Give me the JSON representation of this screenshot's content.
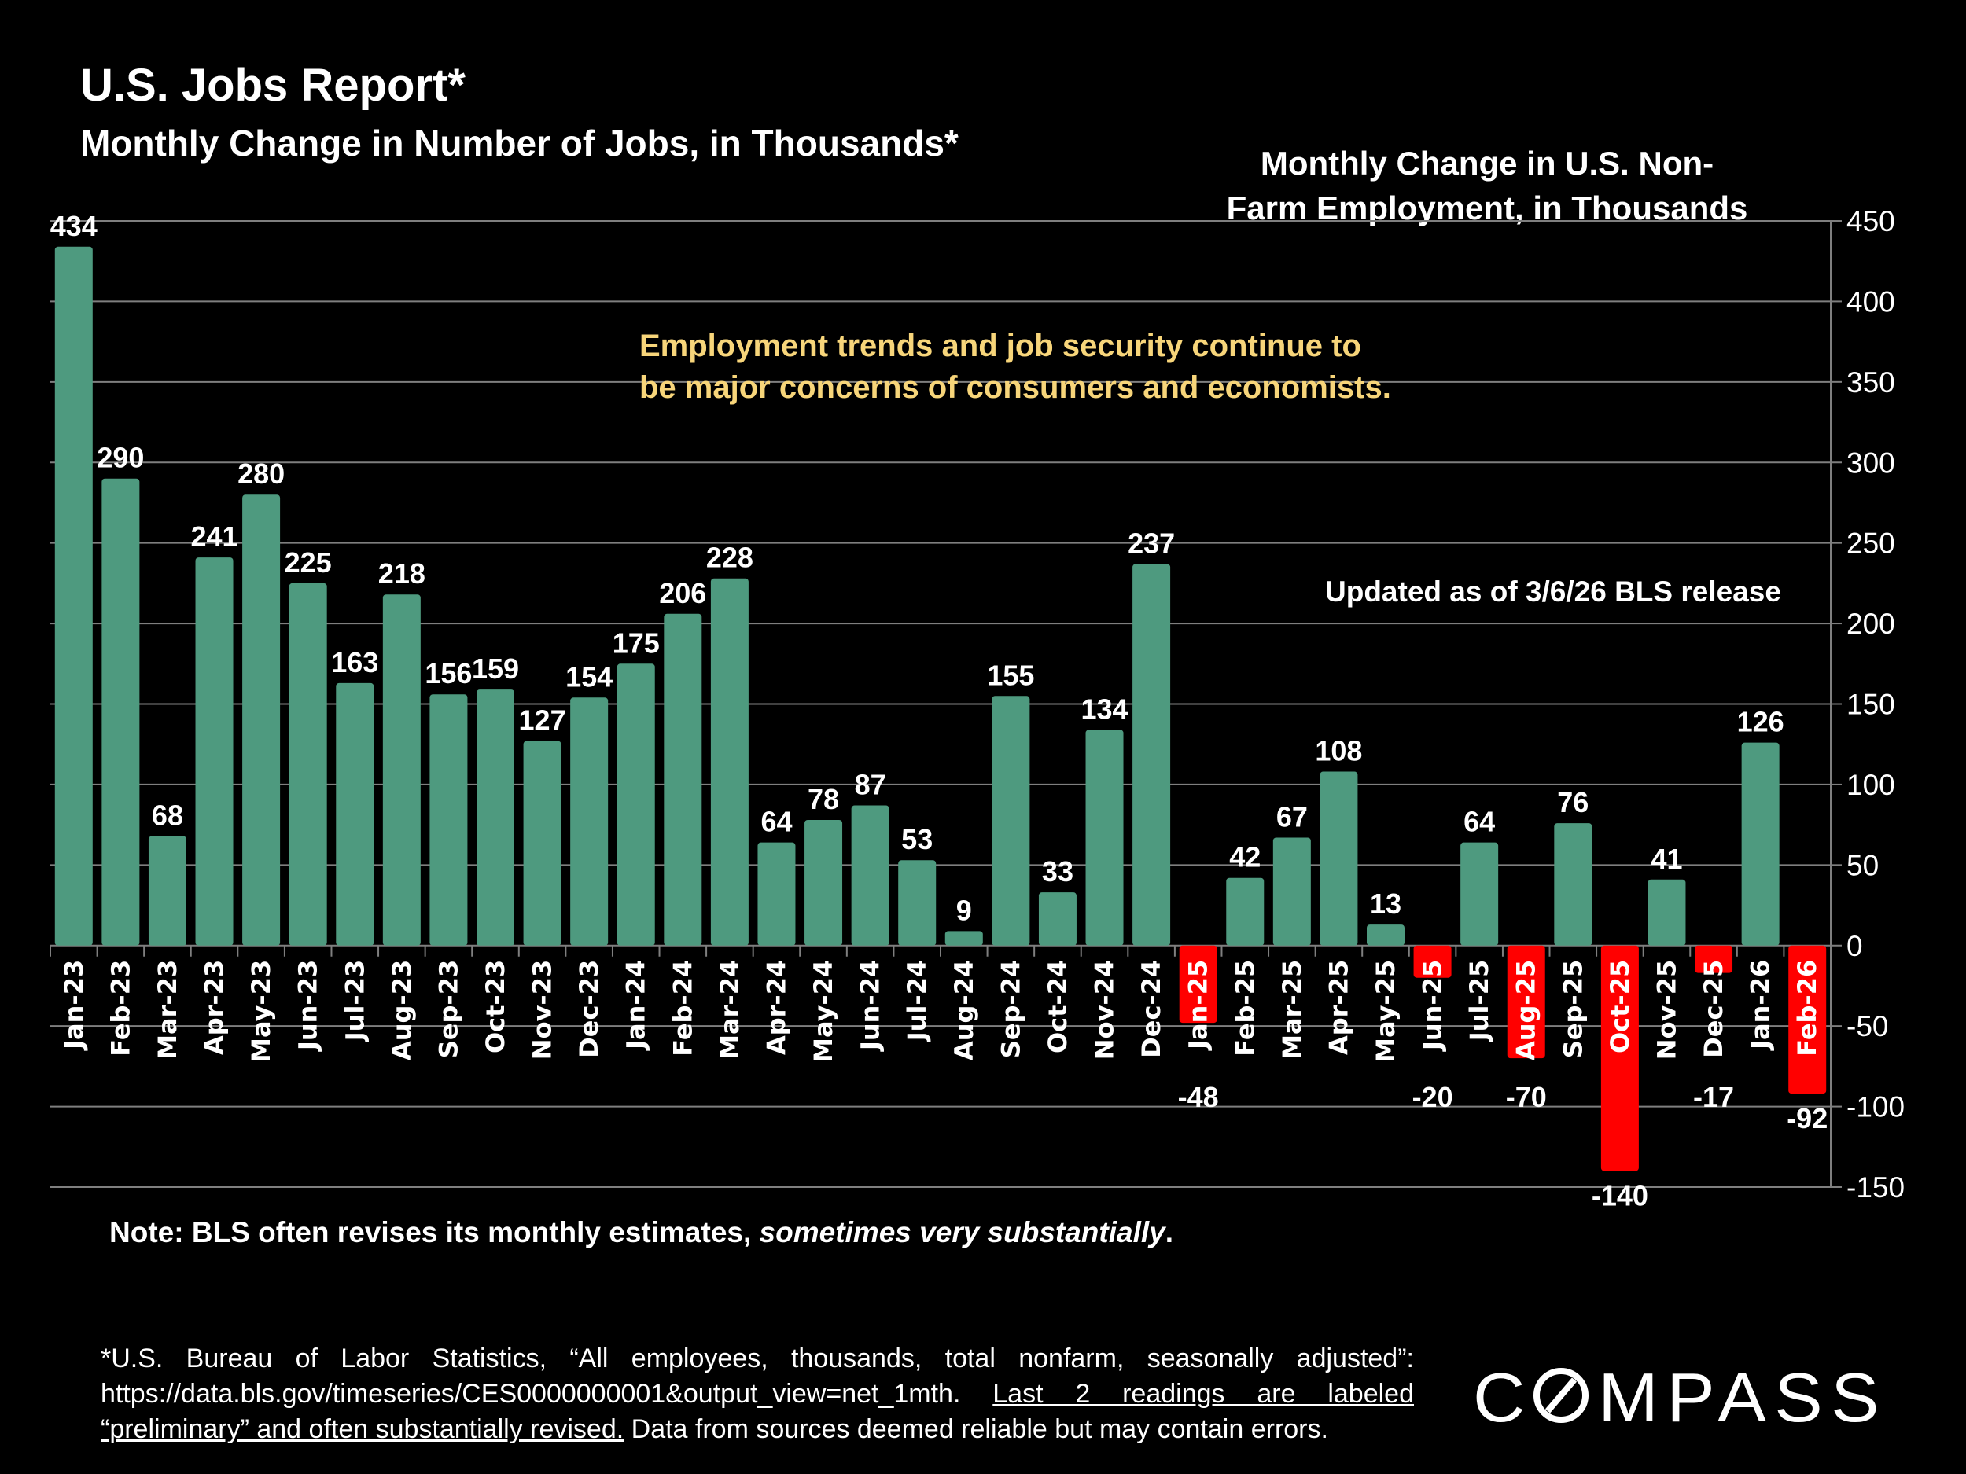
{
  "title": "U.S. Jobs Report*",
  "subtitle": "Monthly Change in Number of Jobs, in Thousands*",
  "annotation": [
    "Employment trends and job security continue to",
    "be major concerns of consumers and economists."
  ],
  "updated": "Updated as of 3/6/26 BLS release",
  "note": {
    "prefix": "Note: BLS often revises its monthly estimates, ",
    "italic": "sometimes very substantially",
    "suffix": "."
  },
  "footnote": {
    "line1": "*U.S. Bureau of Labor Statistics, “All employees, thousands, total nonfarm, seasonally adjusted”:",
    "line2a": "https://data.bls.gov/timeseries/CES0000000001&output_view=net_1mth.",
    "line2b": "Last 2 readings are labeled",
    "line3a": "“preliminary” and often substantially revised.",
    "line3b": " Data from sources deemed reliable but may contain errors."
  },
  "logo": "COMPASS",
  "colors": {
    "positive": "#4e9a7f",
    "negative": "#ff0000",
    "annotation": "#f7d57a",
    "grid": "#7f7f7f"
  },
  "chart_data": {
    "type": "bar",
    "title": [
      "Monthly Change in U.S. Non-",
      "Farm Employment, in Thousands"
    ],
    "categories": [
      "Jan-23",
      "Feb-23",
      "Mar-23",
      "Apr-23",
      "May-23",
      "Jun-23",
      "Jul-23",
      "Aug-23",
      "Sep-23",
      "Oct-23",
      "Nov-23",
      "Dec-23",
      "Jan-24",
      "Feb-24",
      "Mar-24",
      "Apr-24",
      "May-24",
      "Jun-24",
      "Jul-24",
      "Aug-24",
      "Sep-24",
      "Oct-24",
      "Nov-24",
      "Dec-24",
      "Jan-25",
      "Feb-25",
      "Mar-25",
      "Apr-25",
      "May-25",
      "Jun-25",
      "Jul-25",
      "Aug-25",
      "Sep-25",
      "Oct-25",
      "Nov-25",
      "Dec-25",
      "Jan-26",
      "Feb-26"
    ],
    "values": [
      434,
      290,
      68,
      241,
      280,
      225,
      163,
      218,
      156,
      159,
      127,
      154,
      175,
      206,
      228,
      64,
      78,
      87,
      53,
      9,
      155,
      33,
      134,
      237,
      -48,
      42,
      67,
      108,
      13,
      -20,
      64,
      -70,
      76,
      -140,
      41,
      -17,
      126,
      -92
    ],
    "ylim": [
      -150,
      450
    ],
    "yticks": [
      450,
      400,
      350,
      300,
      250,
      200,
      150,
      100,
      50,
      0,
      -50,
      -100,
      -150
    ],
    "yaxis_position": "right",
    "grid": true,
    "legend": "none"
  }
}
